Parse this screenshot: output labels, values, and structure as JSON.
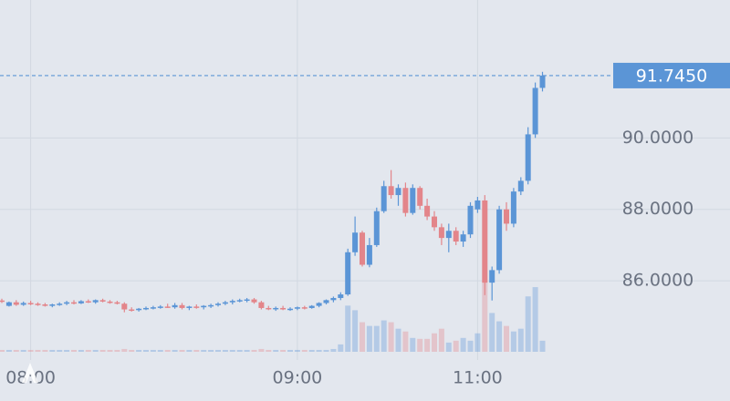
{
  "chart_data": {
    "type": "candlestick",
    "up_color": "#5b95d6",
    "down_color": "#e3858a",
    "last_price": {
      "value": 91.745,
      "label": "91.7450"
    },
    "ylim": [
      84.04,
      93.86
    ],
    "yticks": [
      {
        "value": 86,
        "label": "86.0000"
      },
      {
        "value": 88,
        "label": "88.0000"
      },
      {
        "value": 90,
        "label": "90.0000"
      }
    ],
    "grid": true,
    "categories": [
      null,
      null,
      null,
      null,
      "08:00",
      null,
      null,
      null,
      null,
      null,
      null,
      null,
      null,
      null,
      null,
      null,
      null,
      null,
      null,
      null,
      null,
      null,
      null,
      null,
      null,
      null,
      null,
      null,
      null,
      null,
      null,
      null,
      null,
      null,
      null,
      null,
      null,
      null,
      null,
      null,
      null,
      "09:00",
      null,
      null,
      null,
      null,
      null,
      null,
      null,
      null,
      null,
      null,
      null,
      null,
      null,
      null,
      null,
      null,
      null,
      null,
      null,
      null,
      null,
      null,
      null,
      null,
      "11:00",
      null,
      null,
      null,
      null,
      null,
      null,
      null,
      null,
      null
    ],
    "open": [
      85.45,
      85.3,
      85.4,
      85.33,
      85.38,
      85.36,
      85.34,
      85.3,
      85.34,
      85.36,
      85.4,
      85.37,
      85.43,
      85.4,
      85.46,
      85.42,
      85.4,
      85.36,
      85.2,
      85.18,
      85.22,
      85.24,
      85.26,
      85.28,
      85.26,
      85.32,
      85.24,
      85.28,
      85.26,
      85.3,
      85.32,
      85.36,
      85.4,
      85.44,
      85.46,
      85.48,
      85.4,
      85.24,
      85.22,
      85.24,
      85.2,
      85.22,
      85.26,
      85.24,
      85.3,
      85.38,
      85.46,
      85.52,
      85.62,
      86.8,
      87.35,
      86.45,
      87.0,
      87.95,
      88.65,
      88.4,
      88.6,
      87.9,
      88.6,
      88.1,
      87.8,
      87.5,
      87.2,
      87.4,
      87.1,
      87.3,
      88.0,
      88.25,
      85.95,
      86.3,
      88.0,
      87.6,
      88.5,
      88.8,
      90.1,
      91.4
    ],
    "high": [
      85.5,
      85.42,
      85.46,
      85.42,
      85.44,
      85.4,
      85.38,
      85.36,
      85.4,
      85.44,
      85.46,
      85.46,
      85.48,
      85.48,
      85.5,
      85.46,
      85.44,
      85.4,
      85.26,
      85.24,
      85.28,
      85.3,
      85.32,
      85.36,
      85.38,
      85.38,
      85.3,
      85.34,
      85.32,
      85.36,
      85.4,
      85.44,
      85.48,
      85.5,
      85.52,
      85.52,
      85.44,
      85.3,
      85.28,
      85.3,
      85.26,
      85.28,
      85.3,
      85.32,
      85.4,
      85.48,
      85.56,
      85.68,
      86.9,
      87.8,
      87.4,
      87.2,
      88.05,
      88.8,
      89.1,
      88.7,
      88.75,
      88.7,
      88.65,
      88.3,
      87.95,
      87.6,
      87.6,
      87.5,
      87.4,
      88.2,
      88.35,
      88.4,
      86.4,
      88.1,
      88.2,
      88.6,
      88.9,
      90.3,
      91.55,
      91.85
    ],
    "low": [
      85.38,
      85.28,
      85.3,
      85.3,
      85.32,
      85.3,
      85.28,
      85.26,
      85.3,
      85.32,
      85.34,
      85.35,
      85.38,
      85.36,
      85.4,
      85.36,
      85.34,
      85.12,
      85.14,
      85.14,
      85.18,
      85.2,
      85.22,
      85.24,
      85.22,
      85.2,
      85.18,
      85.22,
      85.2,
      85.24,
      85.28,
      85.32,
      85.34,
      85.4,
      85.4,
      85.36,
      85.2,
      85.18,
      85.16,
      85.18,
      85.16,
      85.18,
      85.2,
      85.22,
      85.26,
      85.34,
      85.4,
      85.46,
      85.58,
      86.7,
      86.4,
      86.38,
      86.95,
      87.9,
      88.3,
      88.1,
      87.8,
      87.85,
      88.0,
      87.7,
      87.4,
      87.0,
      86.8,
      87.0,
      86.95,
      87.2,
      87.9,
      85.6,
      85.45,
      86.2,
      87.4,
      87.5,
      88.4,
      88.7,
      90.0,
      91.3
    ],
    "close": [
      85.42,
      85.4,
      85.33,
      85.38,
      85.36,
      85.34,
      85.3,
      85.34,
      85.36,
      85.4,
      85.37,
      85.43,
      85.4,
      85.46,
      85.42,
      85.4,
      85.36,
      85.2,
      85.18,
      85.22,
      85.24,
      85.26,
      85.28,
      85.26,
      85.32,
      85.24,
      85.28,
      85.26,
      85.3,
      85.32,
      85.36,
      85.4,
      85.44,
      85.46,
      85.48,
      85.4,
      85.24,
      85.22,
      85.24,
      85.2,
      85.22,
      85.26,
      85.24,
      85.3,
      85.38,
      85.46,
      85.52,
      85.62,
      86.8,
      87.35,
      86.45,
      87.0,
      87.95,
      88.65,
      88.4,
      88.6,
      87.9,
      88.6,
      88.1,
      87.8,
      87.5,
      87.2,
      87.4,
      87.1,
      87.3,
      88.1,
      88.25,
      85.95,
      86.3,
      88.0,
      87.6,
      88.5,
      88.8,
      90.1,
      91.4,
      91.745
    ],
    "volume": [
      2,
      2,
      2,
      2,
      2,
      2,
      2,
      2,
      2,
      2,
      2,
      2,
      2,
      2,
      2,
      2,
      2,
      3,
      2,
      2,
      2,
      2,
      2,
      2,
      2,
      2,
      2,
      2,
      2,
      2,
      2,
      2,
      2,
      2,
      2,
      2,
      3,
      2,
      2,
      2,
      2,
      2,
      2,
      2,
      2,
      2,
      3,
      8,
      50,
      45,
      32,
      28,
      28,
      34,
      32,
      25,
      22,
      15,
      14,
      14,
      20,
      25,
      10,
      12,
      15,
      12,
      20,
      75,
      42,
      33,
      28,
      22,
      25,
      60,
      70,
      12
    ]
  }
}
